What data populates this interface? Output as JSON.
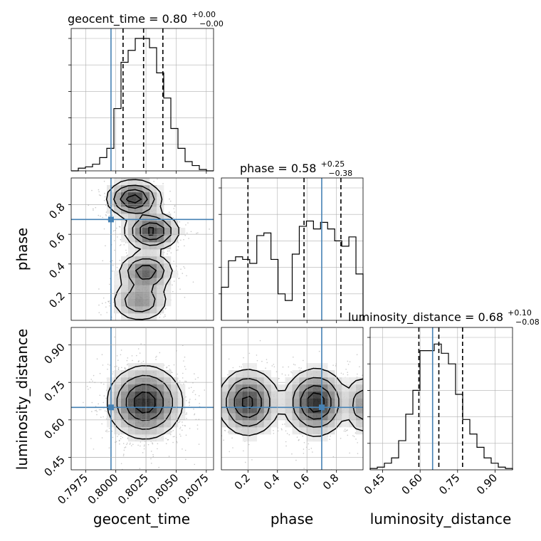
{
  "colors": {
    "truth": "#4682b4",
    "hist": "#000000",
    "contour": "#000000",
    "grid": "#b0b0b0",
    "quantile": "#000000"
  },
  "chart_data": {
    "type": "corner",
    "parameters": [
      "geocent_time",
      "phase",
      "luminosity_distance"
    ],
    "truths": {
      "geocent_time": 0.7996,
      "phase": 0.7,
      "luminosity_distance": 0.65
    },
    "titles": [
      {
        "param": "geocent_time",
        "text": "geocent_time = 0.80",
        "plus": "+0.00",
        "minus": "−0.00"
      },
      {
        "param": "phase",
        "text": "phase = 0.58",
        "plus": "+0.25",
        "minus": "−0.38"
      },
      {
        "param": "luminosity_distance",
        "text": "luminosity_distance = 0.68",
        "plus": "+0.10",
        "minus": "−0.08"
      }
    ],
    "ranges": {
      "geocent_time": [
        0.7963,
        0.8081
      ],
      "phase": [
        0.02,
        0.98
      ],
      "luminosity_distance": [
        0.4,
        0.97
      ]
    },
    "axis_ticks": {
      "geocent_time": [
        0.7975,
        0.8,
        0.8025,
        0.805,
        0.8075
      ],
      "phase": [
        0.2,
        0.4,
        0.6,
        0.8
      ],
      "luminosity_distance": [
        0.45,
        0.6,
        0.75,
        0.9
      ]
    },
    "tick_labels": {
      "geocent_time": [
        "0.7975",
        "0.8000",
        "0.8025",
        "0.8050",
        "0.8075"
      ],
      "phase": [
        "0.2",
        "0.4",
        "0.6",
        "0.8"
      ],
      "luminosity_distance": [
        "0.45",
        "0.60",
        "0.75",
        "0.90"
      ]
    },
    "axis_labels": {
      "geocent_time": "geocent_time",
      "phase": "phase",
      "luminosity_distance": "luminosity_distance"
    },
    "quantiles": {
      "geocent_time": [
        0.8006,
        0.8023,
        0.8039
      ],
      "phase": [
        0.2,
        0.58,
        0.83
      ],
      "luminosity_distance": [
        0.595,
        0.675,
        0.77
      ]
    },
    "histograms": {
      "geocent_time": {
        "counts": [
          0.0,
          0.02,
          0.03,
          0.05,
          0.1,
          0.17,
          0.47,
          0.82,
          0.91,
          1.0,
          1.0,
          0.93,
          0.74,
          0.55,
          0.32,
          0.17,
          0.07,
          0.04,
          0.01,
          0.0
        ]
      },
      "phase": {
        "counts": [
          0.25,
          0.45,
          0.48,
          0.46,
          0.43,
          0.64,
          0.66,
          0.46,
          0.2,
          0.15,
          0.5,
          0.71,
          0.75,
          0.69,
          0.74,
          0.69,
          0.6,
          0.56,
          0.63,
          0.35
        ]
      },
      "luminosity_distance": {
        "counts": [
          0.01,
          0.02,
          0.05,
          0.09,
          0.22,
          0.42,
          0.6,
          0.9,
          0.9,
          0.95,
          0.88,
          0.8,
          0.57,
          0.38,
          0.27,
          0.17,
          0.09,
          0.05,
          0.02,
          0.01
        ]
      }
    },
    "density_2d": [
      {
        "x": "geocent_time",
        "y": "phase",
        "blobs": [
          {
            "cx": 0.8015,
            "cy": 0.84,
            "sx": 0.0011,
            "sy": 0.06,
            "w": 1.0
          },
          {
            "cx": 0.803,
            "cy": 0.62,
            "sx": 0.0011,
            "sy": 0.06,
            "w": 0.95
          },
          {
            "cx": 0.8025,
            "cy": 0.35,
            "sx": 0.0011,
            "sy": 0.06,
            "w": 0.8
          },
          {
            "cx": 0.802,
            "cy": 0.15,
            "sx": 0.0012,
            "sy": 0.07,
            "w": 0.55
          }
        ]
      },
      {
        "x": "geocent_time",
        "y": "luminosity_distance",
        "blobs": [
          {
            "cx": 0.8024,
            "cy": 0.67,
            "sx": 0.0015,
            "sy": 0.07,
            "w": 1.0
          }
        ]
      },
      {
        "x": "phase",
        "y": "luminosity_distance",
        "blobs": [
          {
            "cx": 0.2,
            "cy": 0.67,
            "sx": 0.1,
            "sy": 0.065,
            "w": 0.9
          },
          {
            "cx": 0.66,
            "cy": 0.67,
            "sx": 0.1,
            "sy": 0.065,
            "w": 1.0
          },
          {
            "cx": 0.97,
            "cy": 0.66,
            "sx": 0.05,
            "sy": 0.06,
            "w": 0.5
          }
        ]
      }
    ],
    "contour_levels": [
      0.12,
      0.32,
      0.6,
      0.85
    ]
  }
}
